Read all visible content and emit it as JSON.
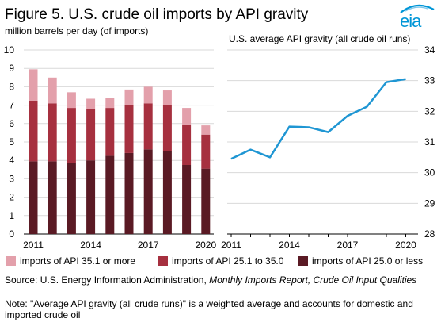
{
  "title": "Figure 5. U.S. crude oil imports by API gravity",
  "logo_text": "eia",
  "colors": {
    "light": "#e3a0ab",
    "mid": "#a6303f",
    "dark": "#5a1a24",
    "line": "#1f96d3",
    "grid": "#d9d9d9",
    "logo": "#0096d7"
  },
  "source": {
    "prefix": "Source: U.S. Energy Information  Administration, ",
    "italic": "Monthly Imports Report,  Crude  Oil Input Qualities"
  },
  "note": "Note: \"Average API gravity (all crude runs)\" is a weighted average  and accounts for domestic and imported crude oil",
  "chart_data": [
    {
      "type": "bar",
      "stacked": true,
      "title": "",
      "ylabel": "million barrels  per day (of imports)",
      "ylim": [
        0,
        10
      ],
      "yticks": [
        "0",
        "1",
        "2",
        "3",
        "4",
        "5",
        "6",
        "7",
        "8",
        "9",
        "10"
      ],
      "categories": [
        "2011",
        "2012",
        "2013",
        "2014",
        "2015",
        "2016",
        "2017",
        "2018",
        "2019",
        "2020"
      ],
      "xtick_labels": [
        "2011",
        "",
        "",
        "2014",
        "",
        "",
        "2017",
        "",
        "",
        "2020"
      ],
      "series": [
        {
          "name": "imports of API 25.0 or less",
          "color": "#5a1a24",
          "values": [
            3.95,
            3.95,
            3.85,
            4.0,
            4.25,
            4.4,
            4.6,
            4.5,
            3.75,
            3.55
          ]
        },
        {
          "name": "imports of API 25.1 to 35.0",
          "color": "#a6303f",
          "values": [
            3.3,
            3.15,
            3.0,
            2.8,
            2.6,
            2.6,
            2.5,
            2.5,
            2.2,
            1.85
          ]
        },
        {
          "name": "imports of API 35.1 or more",
          "color": "#e3a0ab",
          "values": [
            1.7,
            1.4,
            0.85,
            0.55,
            0.55,
            0.85,
            0.9,
            0.8,
            0.9,
            0.5
          ]
        }
      ],
      "grid": true
    },
    {
      "type": "line",
      "title": "",
      "ylabel": "U.S. average  API gravity  (all crude oil runs)",
      "ylim": [
        28,
        34
      ],
      "yticks": [
        "28",
        "29",
        "30",
        "31",
        "32",
        "33",
        "34"
      ],
      "x": [
        "2011",
        "2012",
        "2013",
        "2014",
        "2015",
        "2016",
        "2017",
        "2018",
        "2019",
        "2020"
      ],
      "xtick_labels": [
        "2011",
        "",
        "",
        "2014",
        "",
        "",
        "2017",
        "",
        "",
        "2020"
      ],
      "series": [
        {
          "name": "",
          "color": "#1f96d3",
          "values": [
            30.45,
            30.75,
            30.5,
            31.5,
            31.48,
            31.32,
            31.85,
            32.15,
            32.95,
            33.05
          ]
        }
      ],
      "grid": true
    }
  ],
  "legend": [
    {
      "label": "imports of API 35.1 or more",
      "color": "#e3a0ab"
    },
    {
      "label": "imports of API 25.1 to 35.0",
      "color": "#a6303f"
    },
    {
      "label": "imports of API 25.0 or less",
      "color": "#5a1a24"
    }
  ]
}
